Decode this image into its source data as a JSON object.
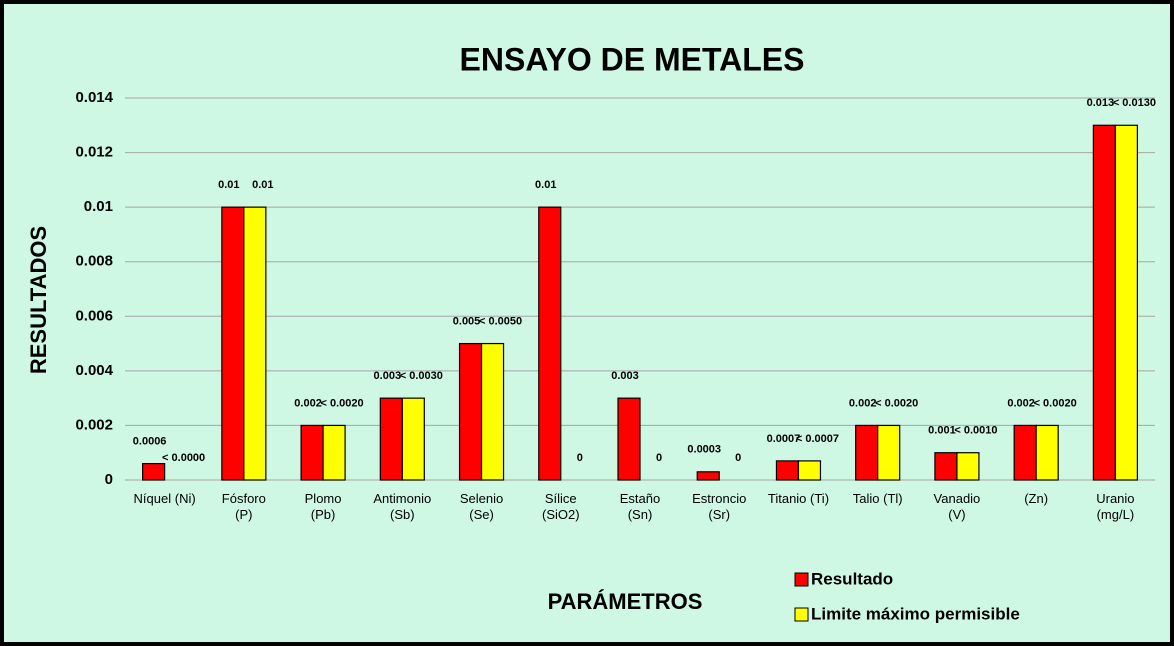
{
  "chart_data": {
    "type": "bar",
    "title": "ENSAYO DE METALES",
    "x_label": "PARÁMETROS",
    "y_label": "RESULTADOS",
    "categories": [
      "Níquel (Ni)",
      "Fósforo\n(P)",
      "Plomo\n(Pb)",
      "Antimonio\n(Sb)",
      "Selenio\n(Se)",
      "Sílice\n(SiO2)",
      "Estaño\n(Sn)",
      "Estroncio\n(Sr)",
      "Titanio (Ti)",
      "Talio (Tl)",
      "Vanadio\n(V)",
      "(Zn)",
      "Uranio\n(mg/L)"
    ],
    "series": [
      {
        "name": "Resultado",
        "color": "#ff0000",
        "values": [
          0.0006,
          0.01,
          0.002,
          0.003,
          0.005,
          0.01,
          0.003,
          0.0003,
          0.0007,
          0.002,
          0.001,
          0.002,
          0.013
        ]
      },
      {
        "name": "Limite máximo permisible",
        "color": "#ffff00",
        "values": [
          0,
          0.01,
          0.002,
          0.003,
          0.005,
          0,
          0,
          0,
          0.0007,
          0.002,
          0.001,
          0.002,
          0.013
        ],
        "value_labels": [
          "< 0.0000",
          "0.01",
          "< 0.0020",
          "< 0.0030",
          "< 0.0050",
          "0",
          "0",
          "0",
          "< 0.0007",
          "< 0.0020",
          "< 0.0010",
          "< 0.0020",
          "< 0.0130"
        ]
      }
    ],
    "ylim": [
      0,
      0.014
    ],
    "yticks": [
      0,
      0.002,
      0.004,
      0.006,
      0.008,
      0.01,
      0.012,
      0.014
    ],
    "grid": true,
    "legend": "bottom-right"
  }
}
